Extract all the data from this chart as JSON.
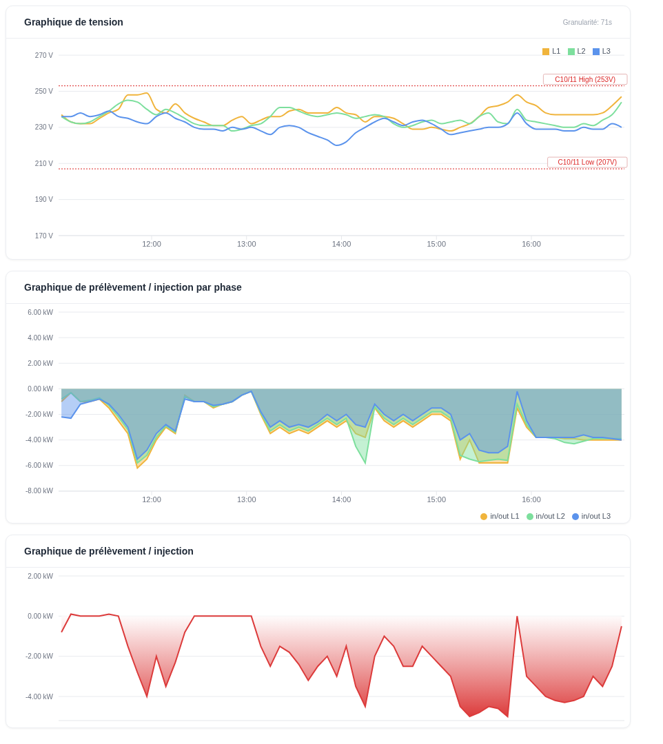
{
  "chart_data": [
    {
      "type": "line",
      "title": "Graphique de tension",
      "annotations": [
        "Granularité: 71s"
      ],
      "x": [
        11.05,
        11.15,
        11.25,
        11.35,
        11.45,
        11.55,
        11.65,
        11.75,
        11.85,
        11.95,
        12.05,
        12.15,
        12.25,
        12.35,
        12.45,
        12.55,
        12.65,
        12.75,
        12.85,
        12.95,
        13.05,
        13.15,
        13.25,
        13.35,
        13.45,
        13.55,
        13.65,
        13.75,
        13.85,
        13.95,
        14.05,
        14.15,
        14.25,
        14.35,
        14.45,
        14.55,
        14.65,
        14.75,
        14.85,
        14.95,
        15.05,
        15.15,
        15.25,
        15.35,
        15.45,
        15.55,
        15.65,
        15.75,
        15.85,
        15.95,
        16.05,
        16.15,
        16.25,
        16.35,
        16.45,
        16.55,
        16.65,
        16.75,
        16.85,
        16.95
      ],
      "series": [
        {
          "name": "L1",
          "color": "#f0b43c",
          "values": [
            237,
            233,
            232,
            232,
            235,
            238,
            240,
            248,
            248,
            249,
            240,
            238,
            243,
            238,
            235,
            233,
            231,
            231,
            234,
            236,
            232,
            234,
            236,
            236,
            239,
            240,
            238,
            238,
            238,
            241,
            238,
            237,
            233,
            236,
            236,
            235,
            232,
            229,
            229,
            230,
            229,
            228,
            230,
            232,
            236,
            241,
            242,
            244,
            248,
            244,
            242,
            238,
            237,
            237,
            237,
            237,
            237,
            238,
            242,
            247
          ]
        },
        {
          "name": "L2",
          "color": "#7ddf9d",
          "values": [
            236,
            233,
            232,
            233,
            236,
            239,
            243,
            245,
            244,
            240,
            237,
            240,
            238,
            235,
            232,
            231,
            231,
            231,
            228,
            229,
            231,
            232,
            236,
            241,
            241,
            239,
            237,
            236,
            237,
            238,
            237,
            235,
            236,
            237,
            236,
            232,
            230,
            231,
            233,
            234,
            232,
            233,
            234,
            232,
            236,
            238,
            233,
            232,
            240,
            234,
            233,
            232,
            231,
            230,
            230,
            232,
            231,
            234,
            237,
            244
          ]
        },
        {
          "name": "L3",
          "color": "#5b93ec",
          "values": [
            236,
            236,
            238,
            236,
            237,
            239,
            236,
            235,
            233,
            232,
            236,
            238,
            235,
            233,
            230,
            229,
            229,
            228,
            230,
            229,
            230,
            228,
            226,
            230,
            231,
            230,
            227,
            225,
            223,
            220,
            222,
            227,
            230,
            233,
            235,
            233,
            231,
            233,
            234,
            232,
            229,
            226,
            227,
            228,
            229,
            230,
            230,
            232,
            238,
            232,
            229,
            229,
            229,
            228,
            228,
            230,
            229,
            229,
            232,
            230
          ]
        }
      ],
      "xlim": [
        11.02,
        16.98
      ],
      "xticks": [
        {
          "value": 12,
          "label": "12:00"
        },
        {
          "value": 13,
          "label": "13:00"
        },
        {
          "value": 14,
          "label": "14:00"
        },
        {
          "value": 15,
          "label": "15:00"
        },
        {
          "value": 16,
          "label": "16:00"
        }
      ],
      "ylim": [
        170,
        270
      ],
      "yticks": [
        {
          "value": 170,
          "label": "170 V"
        },
        {
          "value": 190,
          "label": "190 V"
        },
        {
          "value": 210,
          "label": "210 V"
        },
        {
          "value": 230,
          "label": "230 V"
        },
        {
          "value": 250,
          "label": "250 V"
        },
        {
          "value": 270,
          "label": "270 V"
        }
      ],
      "ref_lines": [
        {
          "axis": "y",
          "value": 253,
          "label": "C10/11 High (253V)",
          "color": "#dc2626",
          "line_style": "dotted"
        },
        {
          "axis": "y",
          "value": 207,
          "label": "C10/11 Low (207V)",
          "color": "#dc2626",
          "line_style": "dotted"
        }
      ],
      "grid": "y",
      "legend": "top right"
    },
    {
      "type": "area",
      "title": "Graphique de prélèvement / injection par phase",
      "x": [
        11.05,
        11.15,
        11.25,
        11.35,
        11.45,
        11.55,
        11.65,
        11.75,
        11.85,
        11.95,
        12.05,
        12.15,
        12.25,
        12.35,
        12.45,
        12.55,
        12.65,
        12.75,
        12.85,
        12.95,
        13.05,
        13.15,
        13.25,
        13.35,
        13.45,
        13.55,
        13.65,
        13.75,
        13.85,
        13.95,
        14.05,
        14.15,
        14.25,
        14.35,
        14.45,
        14.55,
        14.65,
        14.75,
        14.85,
        14.95,
        15.05,
        15.15,
        15.25,
        15.35,
        15.45,
        15.55,
        15.65,
        15.75,
        15.85,
        15.95,
        16.05,
        16.15,
        16.25,
        16.35,
        16.45,
        16.55,
        16.65,
        16.75,
        16.85,
        16.95
      ],
      "series": [
        {
          "name": "in/out L1",
          "color": "#f0b43c",
          "values": [
            -1.0,
            -0.3,
            -1.0,
            -1.0,
            -0.8,
            -1.5,
            -2.5,
            -3.5,
            -6.2,
            -5.5,
            -4.0,
            -3.0,
            -3.5,
            -0.5,
            -1.0,
            -1.0,
            -1.5,
            -1.2,
            -1.0,
            -0.5,
            -0.2,
            -2.0,
            -3.5,
            -3.0,
            -3.5,
            -3.2,
            -3.5,
            -3.0,
            -2.5,
            -3.0,
            -2.5,
            -3.5,
            -3.8,
            -1.5,
            -2.5,
            -3.0,
            -2.5,
            -3.0,
            -2.5,
            -2.0,
            -2.0,
            -2.5,
            -5.5,
            -4.0,
            -5.8,
            -5.8,
            -5.8,
            -5.8,
            -1.5,
            -3.0,
            -3.8,
            -3.8,
            -3.8,
            -3.9,
            -3.9,
            -4.0,
            -4.0,
            -4.0,
            -4.0,
            -4.0
          ]
        },
        {
          "name": "in/out L2",
          "color": "#7ddf9d",
          "values": [
            -0.8,
            -0.3,
            -1.0,
            -0.9,
            -0.7,
            -1.3,
            -2.2,
            -3.2,
            -5.8,
            -5.2,
            -3.8,
            -2.9,
            -3.4,
            -0.6,
            -1.0,
            -1.0,
            -1.4,
            -1.2,
            -1.0,
            -0.5,
            -0.2,
            -1.9,
            -3.3,
            -2.8,
            -3.3,
            -3.0,
            -3.3,
            -2.8,
            -2.3,
            -2.8,
            -2.3,
            -4.5,
            -5.8,
            -1.4,
            -2.3,
            -2.8,
            -2.3,
            -2.8,
            -2.3,
            -1.8,
            -1.8,
            -2.3,
            -5.2,
            -5.5,
            -5.7,
            -5.6,
            -5.5,
            -5.6,
            -1.2,
            -2.8,
            -3.8,
            -3.8,
            -3.9,
            -4.2,
            -4.3,
            -4.1,
            -3.9,
            -3.9,
            -3.9,
            -3.9
          ]
        },
        {
          "name": "in/out L3",
          "color": "#5b93ec",
          "values": [
            -2.2,
            -2.3,
            -1.2,
            -1.0,
            -0.8,
            -1.2,
            -2.0,
            -3.0,
            -5.5,
            -4.8,
            -3.5,
            -2.8,
            -3.3,
            -0.8,
            -1.0,
            -1.0,
            -1.3,
            -1.2,
            -1.0,
            -0.5,
            -0.2,
            -1.8,
            -3.0,
            -2.5,
            -3.0,
            -2.8,
            -3.0,
            -2.6,
            -2.0,
            -2.5,
            -2.0,
            -2.8,
            -3.0,
            -1.2,
            -2.0,
            -2.5,
            -2.0,
            -2.5,
            -2.0,
            -1.5,
            -1.5,
            -2.0,
            -4.0,
            -3.5,
            -4.8,
            -5.0,
            -5.0,
            -4.5,
            -0.2,
            -2.5,
            -3.8,
            -3.8,
            -3.8,
            -3.8,
            -3.8,
            -3.6,
            -3.8,
            -3.8,
            -3.9,
            -4.0
          ]
        }
      ],
      "xlim": [
        11.02,
        16.98
      ],
      "xticks": [
        {
          "value": 12,
          "label": "12:00"
        },
        {
          "value": 13,
          "label": "13:00"
        },
        {
          "value": 14,
          "label": "14:00"
        },
        {
          "value": 15,
          "label": "15:00"
        },
        {
          "value": 16,
          "label": "16:00"
        }
      ],
      "ylim": [
        -8,
        6
      ],
      "yticks": [
        {
          "value": -8,
          "label": "-8.00 kW"
        },
        {
          "value": -6,
          "label": "-6.00 kW"
        },
        {
          "value": -4,
          "label": "-4.00 kW"
        },
        {
          "value": -2,
          "label": "-2.00 kW"
        },
        {
          "value": 0,
          "label": "0.00 kW"
        },
        {
          "value": 2,
          "label": "2.00 kW"
        },
        {
          "value": 4,
          "label": "4.00 kW"
        },
        {
          "value": 6,
          "label": "6.00 kW"
        }
      ],
      "grid": "y",
      "legend": "bottom right"
    },
    {
      "type": "area",
      "title": "Graphique de prélèvement / injection",
      "x": [
        11.05,
        11.15,
        11.25,
        11.35,
        11.45,
        11.55,
        11.65,
        11.75,
        11.85,
        11.95,
        12.05,
        12.15,
        12.25,
        12.35,
        12.45,
        12.55,
        12.65,
        12.75,
        12.85,
        12.95,
        13.05,
        13.15,
        13.25,
        13.35,
        13.45,
        13.55,
        13.65,
        13.75,
        13.85,
        13.95,
        14.05,
        14.15,
        14.25,
        14.35,
        14.45,
        14.55,
        14.65,
        14.75,
        14.85,
        14.95,
        15.05,
        15.15,
        15.25,
        15.35,
        15.45,
        15.55,
        15.65,
        15.75,
        15.85,
        15.95,
        16.05,
        16.15,
        16.25,
        16.35,
        16.45,
        16.55,
        16.65,
        16.75,
        16.85,
        16.95
      ],
      "series": [
        {
          "color": "#dc3b3b",
          "values": [
            -0.8,
            0.1,
            0.0,
            0.0,
            0.0,
            0.1,
            0.0,
            -1.5,
            -2.8,
            -4.0,
            -2.0,
            -3.5,
            -2.3,
            -0.8,
            0.0,
            0.0,
            0.0,
            0.0,
            0.0,
            0.0,
            0.0,
            -1.5,
            -2.5,
            -1.5,
            -1.8,
            -2.4,
            -3.2,
            -2.5,
            -2.0,
            -3.0,
            -1.5,
            -3.5,
            -4.5,
            -2.0,
            -1.0,
            -1.5,
            -2.5,
            -2.5,
            -1.5,
            -2.0,
            -2.5,
            -3.0,
            -4.5,
            -5.0,
            -4.8,
            -4.5,
            -4.6,
            -5.0,
            0.0,
            -3.0,
            -3.5,
            -4.0,
            -4.2,
            -4.3,
            -4.2,
            -4.0,
            -3.0,
            -3.5,
            -2.5,
            -0.5
          ]
        }
      ],
      "xlim": [
        11.02,
        16.98
      ],
      "ylim": [
        -5.2,
        2
      ],
      "yticks": [
        {
          "value": -4,
          "label": "-4.00 kW"
        },
        {
          "value": -2,
          "label": "-2.00 kW"
        },
        {
          "value": 0,
          "label": "0.00 kW"
        },
        {
          "value": 2,
          "label": "2.00 kW"
        }
      ],
      "grid": "y",
      "tick_labels": "y"
    }
  ]
}
